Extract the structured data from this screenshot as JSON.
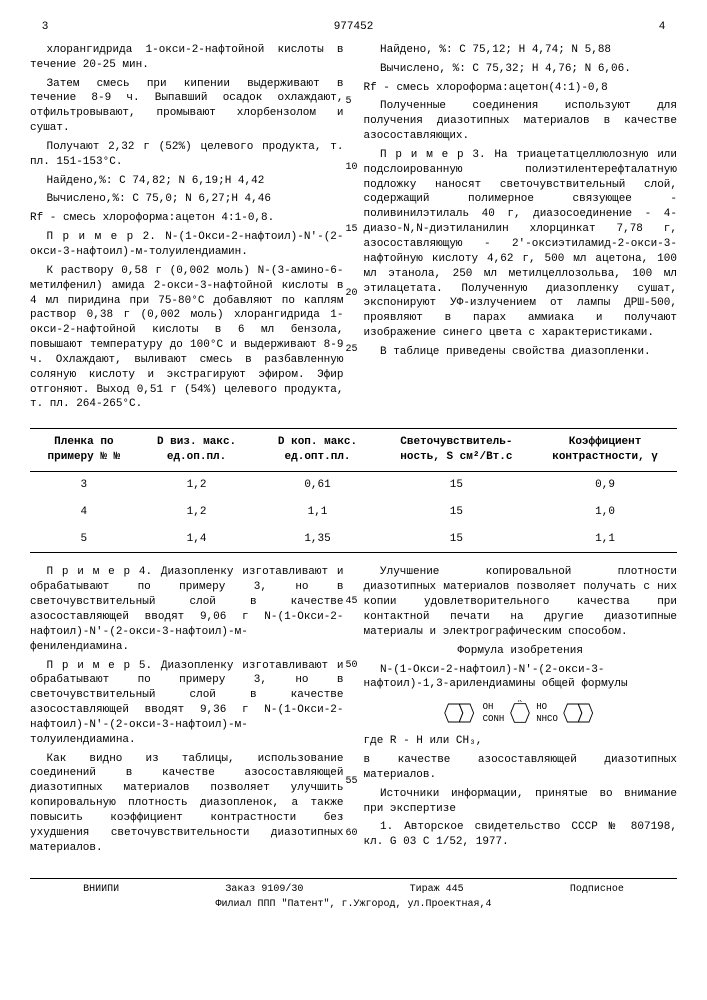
{
  "header": {
    "page_left": "3",
    "doc_number": "977452",
    "page_right": "4"
  },
  "col_left": {
    "p1": "хлорангидрида 1-окси-2-нафтойной кислоты в течение 20-25 мин.",
    "p2": "Затем смесь при кипении выдерживают в течение 8-9 ч. Выпавший осадок охлаждают, отфильтровывают, промывают хлорбензолом и сушат.",
    "p3": "Получают 2,32 г (52%) целевого продукта, т. пл. 151-153°С.",
    "p4": "Найдено,%: С 74,82; N 6,19;Н 4,42",
    "p5": "Вычислено,%: С 75,0; N 6,27;Н 4,46",
    "p6_rf": "Rf - смесь хлороформа:ацетон 4:1-0,8.",
    "p7": "П р и м е р 2. N-(1-Окси-2-нафтоил)-N'-(2-окси-3-нафтоил)-м-толуилендиамин.",
    "p8": "К раствору 0,58 г (0,002 моль) N-(3-амино-6-метилфенил) амида 2-окси-3-нафтойной кислоты в 4 мл пиридина при 75-80°С добавляют по каплям раствор 0,38 г (0,002 моль) хлорангидрида 1-окси-2-нафтойной кислоты в 6 мл бензола, повышают температуру до 100°С и выдерживают 8-9 ч. Охлаждают, выливают смесь в разбавленную соляную кислоту и экстрагируют эфиром. Эфир отгоняют. Выход 0,51 г (54%) целевого продукта, т. пл. 264-265°С."
  },
  "col_right": {
    "p1": "Найдено, %: С 75,12; Н 4,74; N 5,88",
    "p2": "Вычислено, %: С 75,32; Н 4,76; N 6,06.",
    "p3_rf": "Rf - смесь хлороформа:ацетон(4:1)-0,8",
    "p4": "Полученные соединения используют для получения диазотипных материалов в качестве азосоставляющих.",
    "p5": "П р и м е р   3. На триацетатцеллюлозную или подслоированную полиэтилентерефталатную подложку наносят светочувствительный слой, содержащий полимерное связующее - поливинилэтилаль 40 г, диазосоединение - 4-диазо-N,N-диэтиланилин хлорцинкат 7,78 г, азосоставляющую - 2'-оксиэтиламид-2-окси-3-нафтойную кислоту 4,62 г, 500 мл ацетона, 100 мл этанола, 250 мл метилцеллозольва, 100 мл этилацетата. Полученную диазопленку сушат, экспонируют УФ-излучением от лампы ДРШ-500, проявляют в парах аммиака и получают изображение синего цвета с характеристиками.",
    "p6": "В таблице приведены свойства диазопленки."
  },
  "table": {
    "headers": [
      "Пленка по примеру № №",
      "D виз. макс. ед.оп.пл.",
      "D коп. макс. ед.опт.пл.",
      "Светочув­ствитель­ность, S см²/Вт.с",
      "Коэффициент контраст­нос­ти, γ"
    ],
    "rows": [
      [
        "3",
        "1,2",
        "0,61",
        "15",
        "0,9"
      ],
      [
        "4",
        "1,2",
        "1,1",
        "15",
        "1,0"
      ],
      [
        "5",
        "1,4",
        "1,35",
        "15",
        "1,1"
      ]
    ]
  },
  "lower_left": {
    "p1": "П р и м е р   4. Диазопленку изготавливают и обрабатывают по примеру 3, но в светочувствительный слой в качестве азосоставляющей вводят 9,06 г N-(1-Окси-2-нафтоил)-N'-(2-окси-3-нафтоил)-м-фенилендиамина.",
    "p2": "П р и м е р   5. Диазопленку изготавливают и обрабатывают по примеру 3, но в светочувствительный слой в качестве азосоставляющей вводят 9,36 г N-(1-Окси-2-нафтоил)-N'-(2-окси-3-нафтоил)-м-толуилендиамина.",
    "p3": "Как видно из таблицы, использование соединений в качестве азосоставляющей диазотипных материалов позволяет улучшить копировальную плотность диазопленок, а также повысить коэффициент контрастности без ухудшения светочувствительности диазотипных материалов."
  },
  "lower_right": {
    "p1": "Улучшение копировальной плотности диазотипных материалов позволяет получать с них копии удовлетворительного качества при контактной печати на другие диазотипные материалы и электрографическим способом.",
    "formula_intro": "Формула изобретения",
    "formula_name": "N-(1-Окси-2-нафтоил)-N'-(2-окси-3-нафтоил)-1,3-арилендиамины общей формулы",
    "structure_labels": {
      "oh1": "OH",
      "bond1": "CONH",
      "r": "R",
      "bond2": "NHCO",
      "ho2": "HO"
    },
    "where": "где R - Н или CH₃,",
    "as": "в качестве азосоставляющей диазотипных материалов.",
    "sources_title": "Источники информации, принятые во внимание при экспертизе",
    "source1": "1. Авторское свидетельство СССР № 807198, кл. G 03 С 1/52, 1977."
  },
  "line_markers": {
    "m5": "5",
    "m10": "10",
    "m15": "15",
    "m20": "20",
    "m25": "25",
    "m45": "45",
    "m50": "50",
    "m55": "55",
    "m60": "60"
  },
  "footer": {
    "org": "ВНИИПИ",
    "order": "Заказ 9109/30",
    "tiraz": "Тираж 445",
    "sub": "Подписное",
    "branch": "Филиал ППП \"Патент\", г.Ужгород, ул.Проектная,4"
  }
}
